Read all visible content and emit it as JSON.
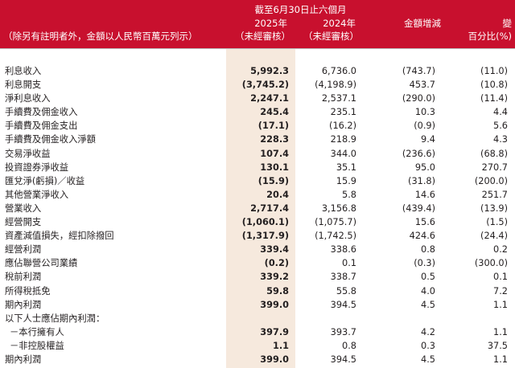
{
  "header": {
    "period_label": "截至6月30日止六個月",
    "note": "（除另有註明者外，金額以人民幣百萬元列示）",
    "year_2025": "2025年",
    "year_2024": "2024年",
    "unaudited_2025": "（未經審核）",
    "unaudited_2024": "（未經審核）",
    "change_amount": "金額增減",
    "change_pct": "變",
    "change_pct_unit": "百分比(%)"
  },
  "colors": {
    "header_bg": "#c8102e",
    "highlight_col_bg": "#f6e9dd",
    "text": "#231f20"
  },
  "rows": [
    {
      "label": "利息收入",
      "v2025": "5,992.3",
      "v2024": "6,736.0",
      "change": "(743.7)",
      "pct": "(11.0)"
    },
    {
      "label": "利息開支",
      "v2025": "(3,745.2)",
      "v2024": "(4,198.9)",
      "change": "453.7",
      "pct": "(10.8)"
    },
    {
      "label": "淨利息收入",
      "v2025": "2,247.1",
      "v2024": "2,537.1",
      "change": "(290.0)",
      "pct": "(11.4)"
    },
    {
      "label": "手續費及佣金收入",
      "v2025": "245.4",
      "v2024": "235.1",
      "change": "10.3",
      "pct": "4.4"
    },
    {
      "label": "手續費及佣金支出",
      "v2025": "(17.1)",
      "v2024": "(16.2)",
      "change": "(0.9)",
      "pct": "5.6"
    },
    {
      "label": "手續費及佣金收入淨額",
      "v2025": "228.3",
      "v2024": "218.9",
      "change": "9.4",
      "pct": "4.3"
    },
    {
      "label": "交易淨收益",
      "v2025": "107.4",
      "v2024": "344.0",
      "change": "(236.6)",
      "pct": "(68.8)"
    },
    {
      "label": "投資證券淨收益",
      "v2025": "130.1",
      "v2024": "35.1",
      "change": "95.0",
      "pct": "270.7"
    },
    {
      "label": "匯兌淨(虧損)／收益",
      "v2025": "(15.9)",
      "v2024": "15.9",
      "change": "(31.8)",
      "pct": "(200.0)"
    },
    {
      "label": "其他營業淨收入",
      "v2025": "20.4",
      "v2024": "5.8",
      "change": "14.6",
      "pct": "251.7"
    },
    {
      "label": "營業收入",
      "v2025": "2,717.4",
      "v2024": "3,156.8",
      "change": "(439.4)",
      "pct": "(13.9)"
    },
    {
      "label": "經營開支",
      "v2025": "(1,060.1)",
      "v2024": "(1,075.7)",
      "change": "15.6",
      "pct": "(1.5)"
    },
    {
      "label": "資產減值損失，經扣除撥回",
      "v2025": "(1,317.9)",
      "v2024": "(1,742.5)",
      "change": "424.6",
      "pct": "(24.4)"
    },
    {
      "label": "經營利潤",
      "v2025": "339.4",
      "v2024": "338.6",
      "change": "0.8",
      "pct": "0.2"
    },
    {
      "label": "應佔聯營公司業績",
      "v2025": "(0.2)",
      "v2024": "0.1",
      "change": "(0.3)",
      "pct": "(300.0)"
    },
    {
      "label": "稅前利潤",
      "v2025": "339.2",
      "v2024": "338.7",
      "change": "0.5",
      "pct": "0.1"
    },
    {
      "label": "所得稅抵免",
      "v2025": "59.8",
      "v2024": "55.8",
      "change": "4.0",
      "pct": "7.2"
    },
    {
      "label": "期內利潤",
      "v2025": "399.0",
      "v2024": "394.5",
      "change": "4.5",
      "pct": "1.1"
    },
    {
      "label": "以下人士應佔期內利潤：",
      "v2025": "",
      "v2024": "",
      "change": "",
      "pct": ""
    },
    {
      "label": "－本行擁有人",
      "v2025": "397.9",
      "v2024": "393.7",
      "change": "4.2",
      "pct": "1.1",
      "indent": true
    },
    {
      "label": "－非控股權益",
      "v2025": "1.1",
      "v2024": "0.8",
      "change": "0.3",
      "pct": "37.5",
      "indent": true
    },
    {
      "label": "期內利潤",
      "v2025": "399.0",
      "v2024": "394.5",
      "change": "4.5",
      "pct": "1.1"
    }
  ]
}
